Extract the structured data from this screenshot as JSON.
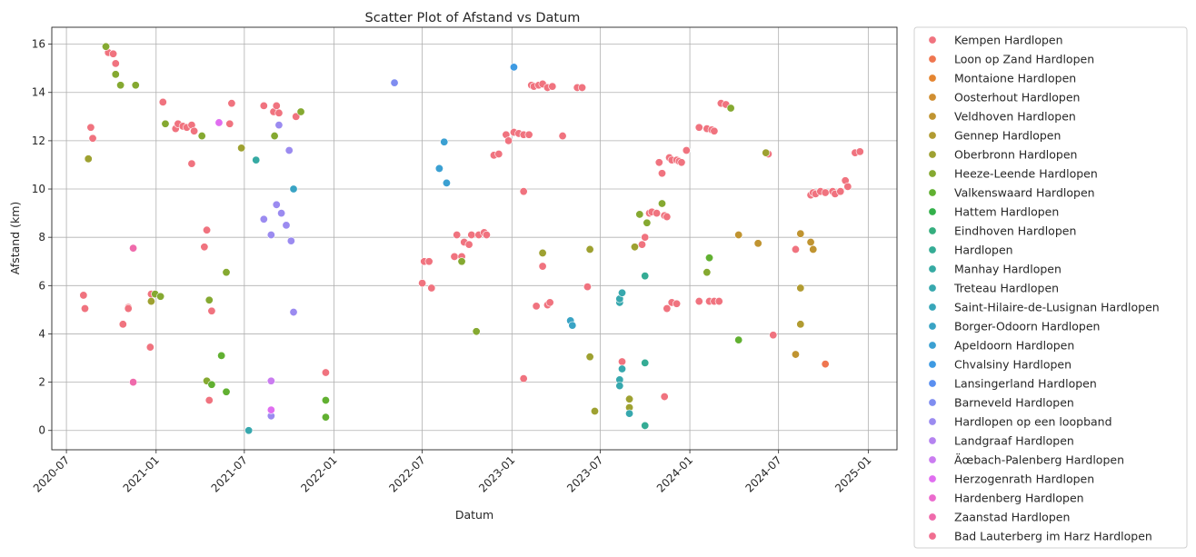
{
  "chart_data": {
    "type": "scatter",
    "title": "Scatter Plot of Afstand vs Datum",
    "xlabel": "Datum",
    "ylabel": "Afstand (km)",
    "x_is_date": true,
    "xlim": [
      "2020-06-01",
      "2025-03-01"
    ],
    "ylim": [
      -0.8,
      16.7
    ],
    "x_ticks": [
      "2020-07-01",
      "2021-01-01",
      "2021-07-01",
      "2022-01-01",
      "2022-07-01",
      "2023-01-01",
      "2023-07-01",
      "2024-01-01",
      "2024-07-01",
      "2025-01-01"
    ],
    "x_tick_labels": [
      "2020-07",
      "2021-01",
      "2021-07",
      "2022-01",
      "2022-07",
      "2023-01",
      "2023-07",
      "2024-01",
      "2024-07",
      "2025-01"
    ],
    "y_ticks": [
      0,
      2,
      4,
      6,
      8,
      10,
      12,
      14,
      16
    ],
    "grid": true,
    "legend_position": "outside-right",
    "series": [
      {
        "name": "Kempen Hardlopen",
        "color": "#f0737f",
        "points": [
          [
            "2020-08-05",
            5.6
          ],
          [
            "2020-08-08",
            5.05
          ],
          [
            "2020-08-20",
            12.55
          ],
          [
            "2020-08-24",
            12.1
          ],
          [
            "2020-09-25",
            15.65
          ],
          [
            "2020-10-05",
            15.6
          ],
          [
            "2020-10-10",
            15.2
          ],
          [
            "2020-10-25",
            4.4
          ],
          [
            "2020-11-05",
            5.1
          ],
          [
            "2020-11-05",
            5.05
          ],
          [
            "2020-12-20",
            3.45
          ],
          [
            "2020-12-22",
            5.65
          ],
          [
            "2021-01-15",
            13.6
          ],
          [
            "2021-02-10",
            12.5
          ],
          [
            "2021-02-15",
            12.7
          ],
          [
            "2021-02-25",
            12.6
          ],
          [
            "2021-03-05",
            12.55
          ],
          [
            "2021-03-15",
            12.65
          ],
          [
            "2021-03-20",
            12.4
          ],
          [
            "2021-03-15",
            11.05
          ],
          [
            "2021-04-10",
            7.6
          ],
          [
            "2021-04-15",
            8.3
          ],
          [
            "2021-04-20",
            1.25
          ],
          [
            "2021-04-25",
            4.95
          ],
          [
            "2021-06-05",
            13.55
          ],
          [
            "2021-06-01",
            12.7
          ],
          [
            "2021-08-10",
            13.45
          ],
          [
            "2021-08-30",
            13.2
          ],
          [
            "2021-09-05",
            13.45
          ],
          [
            "2021-09-10",
            13.15
          ],
          [
            "2021-10-15",
            13.0
          ],
          [
            "2021-12-15",
            2.4
          ],
          [
            "2022-07-01",
            6.1
          ],
          [
            "2022-07-05",
            7.0
          ],
          [
            "2022-07-15",
            7.0
          ],
          [
            "2022-07-20",
            5.9
          ],
          [
            "2022-09-05",
            7.2
          ],
          [
            "2022-09-10",
            8.1
          ],
          [
            "2022-09-20",
            7.2
          ],
          [
            "2022-09-25",
            7.8
          ],
          [
            "2022-10-05",
            7.7
          ],
          [
            "2022-10-10",
            8.1
          ],
          [
            "2022-10-25",
            8.1
          ],
          [
            "2022-11-05",
            8.2
          ],
          [
            "2022-11-10",
            8.1
          ],
          [
            "2022-11-25",
            11.4
          ],
          [
            "2022-12-05",
            11.45
          ],
          [
            "2022-12-20",
            12.25
          ],
          [
            "2022-12-25",
            12.0
          ],
          [
            "2023-01-05",
            12.35
          ],
          [
            "2023-01-15",
            12.3
          ],
          [
            "2023-01-25",
            12.25
          ],
          [
            "2023-02-05",
            12.25
          ],
          [
            "2023-01-25",
            9.9
          ],
          [
            "2023-01-25",
            2.15
          ],
          [
            "2023-02-10",
            14.3
          ],
          [
            "2023-02-15",
            14.25
          ],
          [
            "2023-02-25",
            14.3
          ],
          [
            "2023-03-05",
            14.35
          ],
          [
            "2023-03-15",
            14.2
          ],
          [
            "2023-03-25",
            14.25
          ],
          [
            "2023-04-15",
            12.2
          ],
          [
            "2023-05-15",
            14.2
          ],
          [
            "2023-05-25",
            14.2
          ],
          [
            "2023-02-20",
            5.15
          ],
          [
            "2023-03-05",
            6.8
          ],
          [
            "2023-03-15",
            5.2
          ],
          [
            "2023-03-20",
            5.3
          ],
          [
            "2023-06-05",
            5.95
          ],
          [
            "2023-08-15",
            2.85
          ],
          [
            "2023-09-25",
            7.7
          ],
          [
            "2023-10-01",
            8.0
          ],
          [
            "2023-10-10",
            9.0
          ],
          [
            "2023-10-15",
            9.05
          ],
          [
            "2023-10-25",
            9.0
          ],
          [
            "2023-10-30",
            11.1
          ],
          [
            "2023-11-05",
            10.65
          ],
          [
            "2023-11-10",
            8.9
          ],
          [
            "2023-11-15",
            8.85
          ],
          [
            "2023-11-20",
            11.3
          ],
          [
            "2023-11-25",
            11.2
          ],
          [
            "2023-12-05",
            11.2
          ],
          [
            "2023-12-10",
            11.15
          ],
          [
            "2023-12-15",
            11.1
          ],
          [
            "2023-12-25",
            11.6
          ],
          [
            "2023-11-15",
            5.05
          ],
          [
            "2023-11-25",
            5.3
          ],
          [
            "2023-12-05",
            5.25
          ],
          [
            "2023-11-10",
            1.4
          ],
          [
            "2024-01-20",
            12.55
          ],
          [
            "2024-02-05",
            12.5
          ],
          [
            "2024-02-15",
            12.45
          ],
          [
            "2024-02-20",
            12.4
          ],
          [
            "2024-03-05",
            13.55
          ],
          [
            "2024-03-15",
            13.5
          ],
          [
            "2024-01-20",
            5.35
          ],
          [
            "2024-02-10",
            5.35
          ],
          [
            "2024-02-20",
            5.35
          ],
          [
            "2024-03-01",
            5.35
          ],
          [
            "2024-06-20",
            3.95
          ],
          [
            "2024-06-10",
            11.45
          ],
          [
            "2024-08-05",
            7.5
          ],
          [
            "2024-09-05",
            9.75
          ],
          [
            "2024-09-10",
            9.85
          ],
          [
            "2024-09-15",
            9.8
          ],
          [
            "2024-09-25",
            9.9
          ],
          [
            "2024-10-05",
            9.85
          ],
          [
            "2024-10-20",
            9.9
          ],
          [
            "2024-10-25",
            9.8
          ],
          [
            "2024-11-05",
            9.9
          ],
          [
            "2024-11-15",
            10.35
          ],
          [
            "2024-11-20",
            10.1
          ],
          [
            "2024-12-05",
            11.5
          ],
          [
            "2024-12-15",
            11.55
          ]
        ]
      },
      {
        "name": "Loon op Zand Hardlopen",
        "color": "#ef7650",
        "points": [
          [
            "2024-10-05",
            2.75
          ]
        ]
      },
      {
        "name": "Montaione Hardlopen",
        "color": "#e58530",
        "points": []
      },
      {
        "name": "Oosterhout Hardlopen",
        "color": "#d08e31",
        "points": []
      },
      {
        "name": "Veldhoven Hardlopen",
        "color": "#c09431",
        "points": [
          [
            "2024-04-10",
            8.1
          ],
          [
            "2024-05-20",
            7.75
          ],
          [
            "2024-08-15",
            8.15
          ],
          [
            "2024-09-05",
            7.8
          ],
          [
            "2024-09-10",
            7.5
          ],
          [
            "2024-08-05",
            3.15
          ]
        ]
      },
      {
        "name": "Gennep Hardlopen",
        "color": "#b19b31",
        "points": [
          [
            "2024-08-15",
            5.9
          ],
          [
            "2024-08-15",
            4.4
          ]
        ]
      },
      {
        "name": "Oberbronn Hardlopen",
        "color": "#9ea131",
        "points": [
          [
            "2020-08-15",
            11.25
          ],
          [
            "2020-12-22",
            5.35
          ],
          [
            "2021-06-25",
            11.7
          ],
          [
            "2023-03-05",
            7.35
          ],
          [
            "2023-06-10",
            7.5
          ],
          [
            "2023-06-10",
            3.05
          ],
          [
            "2023-06-20",
            0.8
          ],
          [
            "2023-08-30",
            1.3
          ],
          [
            "2023-08-30",
            0.95
          ],
          [
            "2023-09-10",
            7.6
          ],
          [
            "2024-06-05",
            11.5
          ]
        ]
      },
      {
        "name": "Heeze-Leende Hardlopen",
        "color": "#85a931",
        "points": [
          [
            "2020-09-20",
            15.9
          ],
          [
            "2020-10-10",
            14.75
          ],
          [
            "2020-10-20",
            14.3
          ],
          [
            "2020-11-20",
            14.3
          ],
          [
            "2020-12-30",
            5.65
          ],
          [
            "2021-01-10",
            5.55
          ],
          [
            "2021-01-20",
            12.7
          ],
          [
            "2021-04-05",
            12.2
          ],
          [
            "2021-04-15",
            2.05
          ],
          [
            "2021-04-20",
            5.4
          ],
          [
            "2021-05-25",
            6.55
          ],
          [
            "2021-09-01",
            12.2
          ],
          [
            "2021-10-25",
            13.2
          ],
          [
            "2022-09-20",
            7.0
          ],
          [
            "2022-10-20",
            4.1
          ],
          [
            "2023-09-20",
            8.95
          ],
          [
            "2023-10-05",
            8.6
          ],
          [
            "2023-11-05",
            9.4
          ],
          [
            "2024-02-05",
            6.55
          ],
          [
            "2024-03-25",
            13.35
          ]
        ]
      },
      {
        "name": "Valkenswaard Hardlopen",
        "color": "#61b031",
        "points": [
          [
            "2021-04-25",
            1.9
          ],
          [
            "2021-05-15",
            3.1
          ],
          [
            "2021-05-25",
            1.6
          ],
          [
            "2021-12-15",
            1.25
          ],
          [
            "2021-12-15",
            0.55
          ],
          [
            "2024-02-10",
            7.15
          ],
          [
            "2024-04-10",
            3.75
          ]
        ]
      },
      {
        "name": "Hattem Hardlopen",
        "color": "#33b04a",
        "points": []
      },
      {
        "name": "Eindhoven Hardlopen",
        "color": "#34ae7e",
        "points": []
      },
      {
        "name": "Hardlopen",
        "color": "#35ac95",
        "points": [
          [
            "2023-10-01",
            6.4
          ],
          [
            "2023-10-01",
            2.8
          ],
          [
            "2023-10-01",
            0.2
          ]
        ]
      },
      {
        "name": "Manhay Hardlopen",
        "color": "#36aaa3",
        "points": [
          [
            "2021-07-25",
            11.2
          ]
        ]
      },
      {
        "name": "Treteau Hardlopen",
        "color": "#37a8ae",
        "points": [
          [
            "2021-07-10",
            0.0
          ],
          [
            "2023-08-10",
            5.3
          ],
          [
            "2023-08-10",
            2.1
          ],
          [
            "2023-08-15",
            2.55
          ],
          [
            "2023-08-10",
            1.85
          ],
          [
            "2023-08-30",
            0.7
          ],
          [
            "2023-08-10",
            5.45
          ],
          [
            "2023-08-15",
            5.7
          ]
        ]
      },
      {
        "name": "Saint-Hilaire-de-Lusignan Hardlopen",
        "color": "#38a6b9",
        "points": []
      },
      {
        "name": "Borger-Odoorn Hardlopen",
        "color": "#39a3c4",
        "points": [
          [
            "2021-10-10",
            10.0
          ],
          [
            "2023-05-01",
            4.55
          ],
          [
            "2023-05-05",
            4.35
          ]
        ]
      },
      {
        "name": "Apeldoorn Hardlopen",
        "color": "#3ba0d2",
        "points": [
          [
            "2022-08-05",
            10.85
          ],
          [
            "2022-08-15",
            11.95
          ],
          [
            "2022-08-20",
            10.25
          ]
        ]
      },
      {
        "name": "Chvalsiny Hardlopen",
        "color": "#3e9ae2",
        "points": [
          [
            "2023-01-05",
            15.05
          ]
        ]
      },
      {
        "name": "Lansingerland Hardlopen",
        "color": "#5a8ff0",
        "points": []
      },
      {
        "name": "Barneveld Hardlopen",
        "color": "#7f8df0",
        "points": [
          [
            "2022-05-05",
            14.4
          ]
        ]
      },
      {
        "name": "Hardlopen op een loopband",
        "color": "#9b8bf0",
        "points": [
          [
            "2021-08-10",
            8.75
          ],
          [
            "2021-08-25",
            8.1
          ],
          [
            "2021-09-05",
            9.35
          ],
          [
            "2021-09-10",
            12.65
          ],
          [
            "2021-09-15",
            9.0
          ],
          [
            "2021-09-25",
            8.5
          ],
          [
            "2021-10-01",
            11.6
          ],
          [
            "2021-10-05",
            7.85
          ],
          [
            "2021-10-10",
            4.9
          ],
          [
            "2021-08-25",
            0.6
          ]
        ]
      },
      {
        "name": "Landgraaf Hardlopen",
        "color": "#b583f0",
        "points": []
      },
      {
        "name": "Äœbach-Palenberg Hardlopen",
        "color": "#ca7cf0",
        "points": [
          [
            "2021-08-25",
            2.05
          ]
        ]
      },
      {
        "name": "Herzogenrath Hardlopen",
        "color": "#e06ef0",
        "points": [
          [
            "2021-05-10",
            12.75
          ],
          [
            "2021-08-25",
            0.85
          ]
        ]
      },
      {
        "name": "Hardenberg Hardlopen",
        "color": "#eb6acd",
        "points": []
      },
      {
        "name": "Zaanstad Hardlopen",
        "color": "#ef6aab",
        "points": [
          [
            "2020-11-15",
            7.55
          ],
          [
            "2020-11-15",
            2.0
          ]
        ]
      },
      {
        "name": "Bad Lauterberg im Harz Hardlopen",
        "color": "#f06e90",
        "points": []
      }
    ]
  }
}
